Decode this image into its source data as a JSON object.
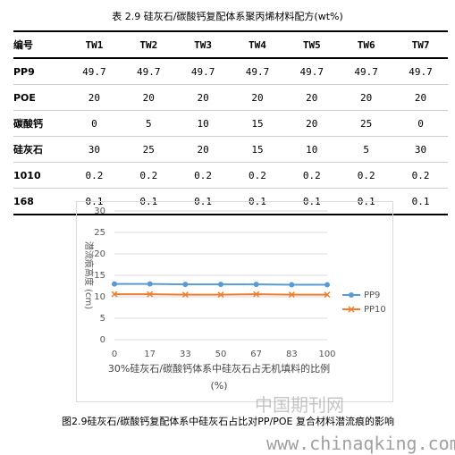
{
  "table": {
    "title": "表 2.9 硅灰石/碳酸钙复配体系聚丙烯材料配方(wt%)",
    "rows": [
      [
        "编号",
        "TW1",
        "TW2",
        "TW3",
        "TW4",
        "TW5",
        "TW6",
        "TW7"
      ],
      [
        "PP9",
        "49.7",
        "49.7",
        "49.7",
        "49.7",
        "49.7",
        "49.7",
        "49.7"
      ],
      [
        "POE",
        "20",
        "20",
        "20",
        "20",
        "20",
        "20",
        "20"
      ],
      [
        "碳酸钙",
        "0",
        "5",
        "10",
        "15",
        "20",
        "25",
        "0"
      ],
      [
        "硅灰石",
        "30",
        "25",
        "20",
        "15",
        "10",
        "5",
        "30"
      ],
      [
        "1010",
        "0.2",
        "0.2",
        "0.2",
        "0.2",
        "0.2",
        "0.2",
        "0.2"
      ],
      [
        "168",
        "0.1",
        "0.1",
        "0.1",
        "0.1",
        "0.1",
        "0.1",
        "0.1"
      ]
    ]
  },
  "chart_data": {
    "type": "line",
    "x_label": "30%硅灰石/碳酸钙体系中硅灰石占无机填料的比例 (%)",
    "y_label": "潜流痕高度 (cm)",
    "categories": [
      "0",
      "17",
      "33",
      "50",
      "67",
      "83",
      "100"
    ],
    "series": [
      {
        "name": "PP9",
        "color": "#5b9bd5",
        "values": [
          13.0,
          13.0,
          12.9,
          12.9,
          12.9,
          12.8,
          12.8
        ]
      },
      {
        "name": "PP10",
        "color": "#ed7d31",
        "values": [
          10.6,
          10.6,
          10.5,
          10.5,
          10.6,
          10.5,
          10.5
        ]
      }
    ],
    "ylim": [
      0,
      30
    ],
    "yticks": [
      0,
      5,
      10,
      15,
      20,
      25,
      30
    ],
    "grid": true
  },
  "caption": "图2.9硅灰石/碳酸钙复配体系中硅灰石占比对PP/POE 复合材料潜流痕的影响",
  "watermark": {
    "name": "中国期刊网",
    "url": "www.chinaqking.com"
  }
}
